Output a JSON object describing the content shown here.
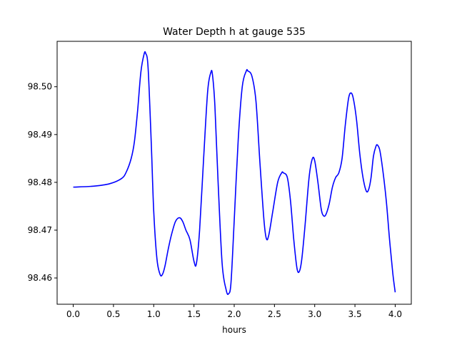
{
  "chart_data": {
    "type": "line",
    "title": "Water Depth h at gauge 535",
    "xlabel": "hours",
    "ylabel": "",
    "xlim": [
      -0.2,
      4.2
    ],
    "ylim": [
      98.4545,
      98.5095
    ],
    "xticks": [
      0.0,
      0.5,
      1.0,
      1.5,
      2.0,
      2.5,
      3.0,
      3.5,
      4.0
    ],
    "xtick_labels": [
      "0.0",
      "0.5",
      "1.0",
      "1.5",
      "2.0",
      "2.5",
      "3.0",
      "3.5",
      "4.0"
    ],
    "yticks": [
      98.46,
      98.47,
      98.48,
      98.49,
      98.5
    ],
    "ytick_labels": [
      "98.46",
      "98.47",
      "98.48",
      "98.49",
      "98.50"
    ],
    "grid": false,
    "line_color": "#0000ff",
    "series": [
      {
        "x": [
          0.0,
          0.25,
          0.45,
          0.6,
          0.66,
          0.72,
          0.76,
          0.8,
          0.84,
          0.88,
          0.9,
          0.93,
          0.97,
          1.0,
          1.04,
          1.08,
          1.11,
          1.14,
          1.18,
          1.22,
          1.27,
          1.32,
          1.36,
          1.4,
          1.45,
          1.5,
          1.53,
          1.57,
          1.62,
          1.67,
          1.71,
          1.73,
          1.76,
          1.8,
          1.85,
          1.9,
          1.93,
          1.96,
          2.0,
          2.05,
          2.1,
          2.15,
          2.17,
          2.22,
          2.27,
          2.32,
          2.37,
          2.4,
          2.43,
          2.48,
          2.54,
          2.59,
          2.61,
          2.66,
          2.7,
          2.74,
          2.78,
          2.81,
          2.84,
          2.88,
          2.93,
          2.97,
          3.0,
          3.04,
          3.08,
          3.11,
          3.14,
          3.18,
          3.22,
          3.26,
          3.3,
          3.34,
          3.38,
          3.42,
          3.45,
          3.48,
          3.52,
          3.56,
          3.6,
          3.64,
          3.67,
          3.7,
          3.73,
          3.76,
          3.78,
          3.81,
          3.85,
          3.89,
          3.93,
          3.97,
          4.0
        ],
        "y": [
          98.479,
          98.4792,
          98.4797,
          98.4808,
          98.4822,
          98.485,
          98.4885,
          98.495,
          98.503,
          98.5068,
          98.507,
          98.504,
          98.488,
          98.474,
          98.464,
          98.4607,
          98.4608,
          98.4625,
          98.466,
          98.469,
          98.4718,
          98.4726,
          98.4718,
          98.47,
          98.468,
          98.4635,
          98.463,
          98.47,
          98.485,
          98.499,
          98.503,
          98.5025,
          98.496,
          98.48,
          98.463,
          98.4575,
          98.4567,
          98.459,
          98.472,
          98.489,
          98.5,
          98.5033,
          98.5033,
          98.5022,
          98.497,
          98.484,
          98.472,
          98.4682,
          98.469,
          98.474,
          98.48,
          98.482,
          98.482,
          98.481,
          98.476,
          98.468,
          98.462,
          98.4614,
          98.464,
          98.471,
          98.481,
          98.4849,
          98.4845,
          98.48,
          98.4745,
          98.473,
          98.4733,
          98.4755,
          98.479,
          98.481,
          98.482,
          98.485,
          98.492,
          98.4975,
          98.4987,
          98.4975,
          98.493,
          98.486,
          98.481,
          98.4782,
          98.4785,
          98.481,
          98.4855,
          98.4875,
          98.4878,
          98.4866,
          98.482,
          98.476,
          98.468,
          98.461,
          98.457
        ]
      }
    ]
  }
}
